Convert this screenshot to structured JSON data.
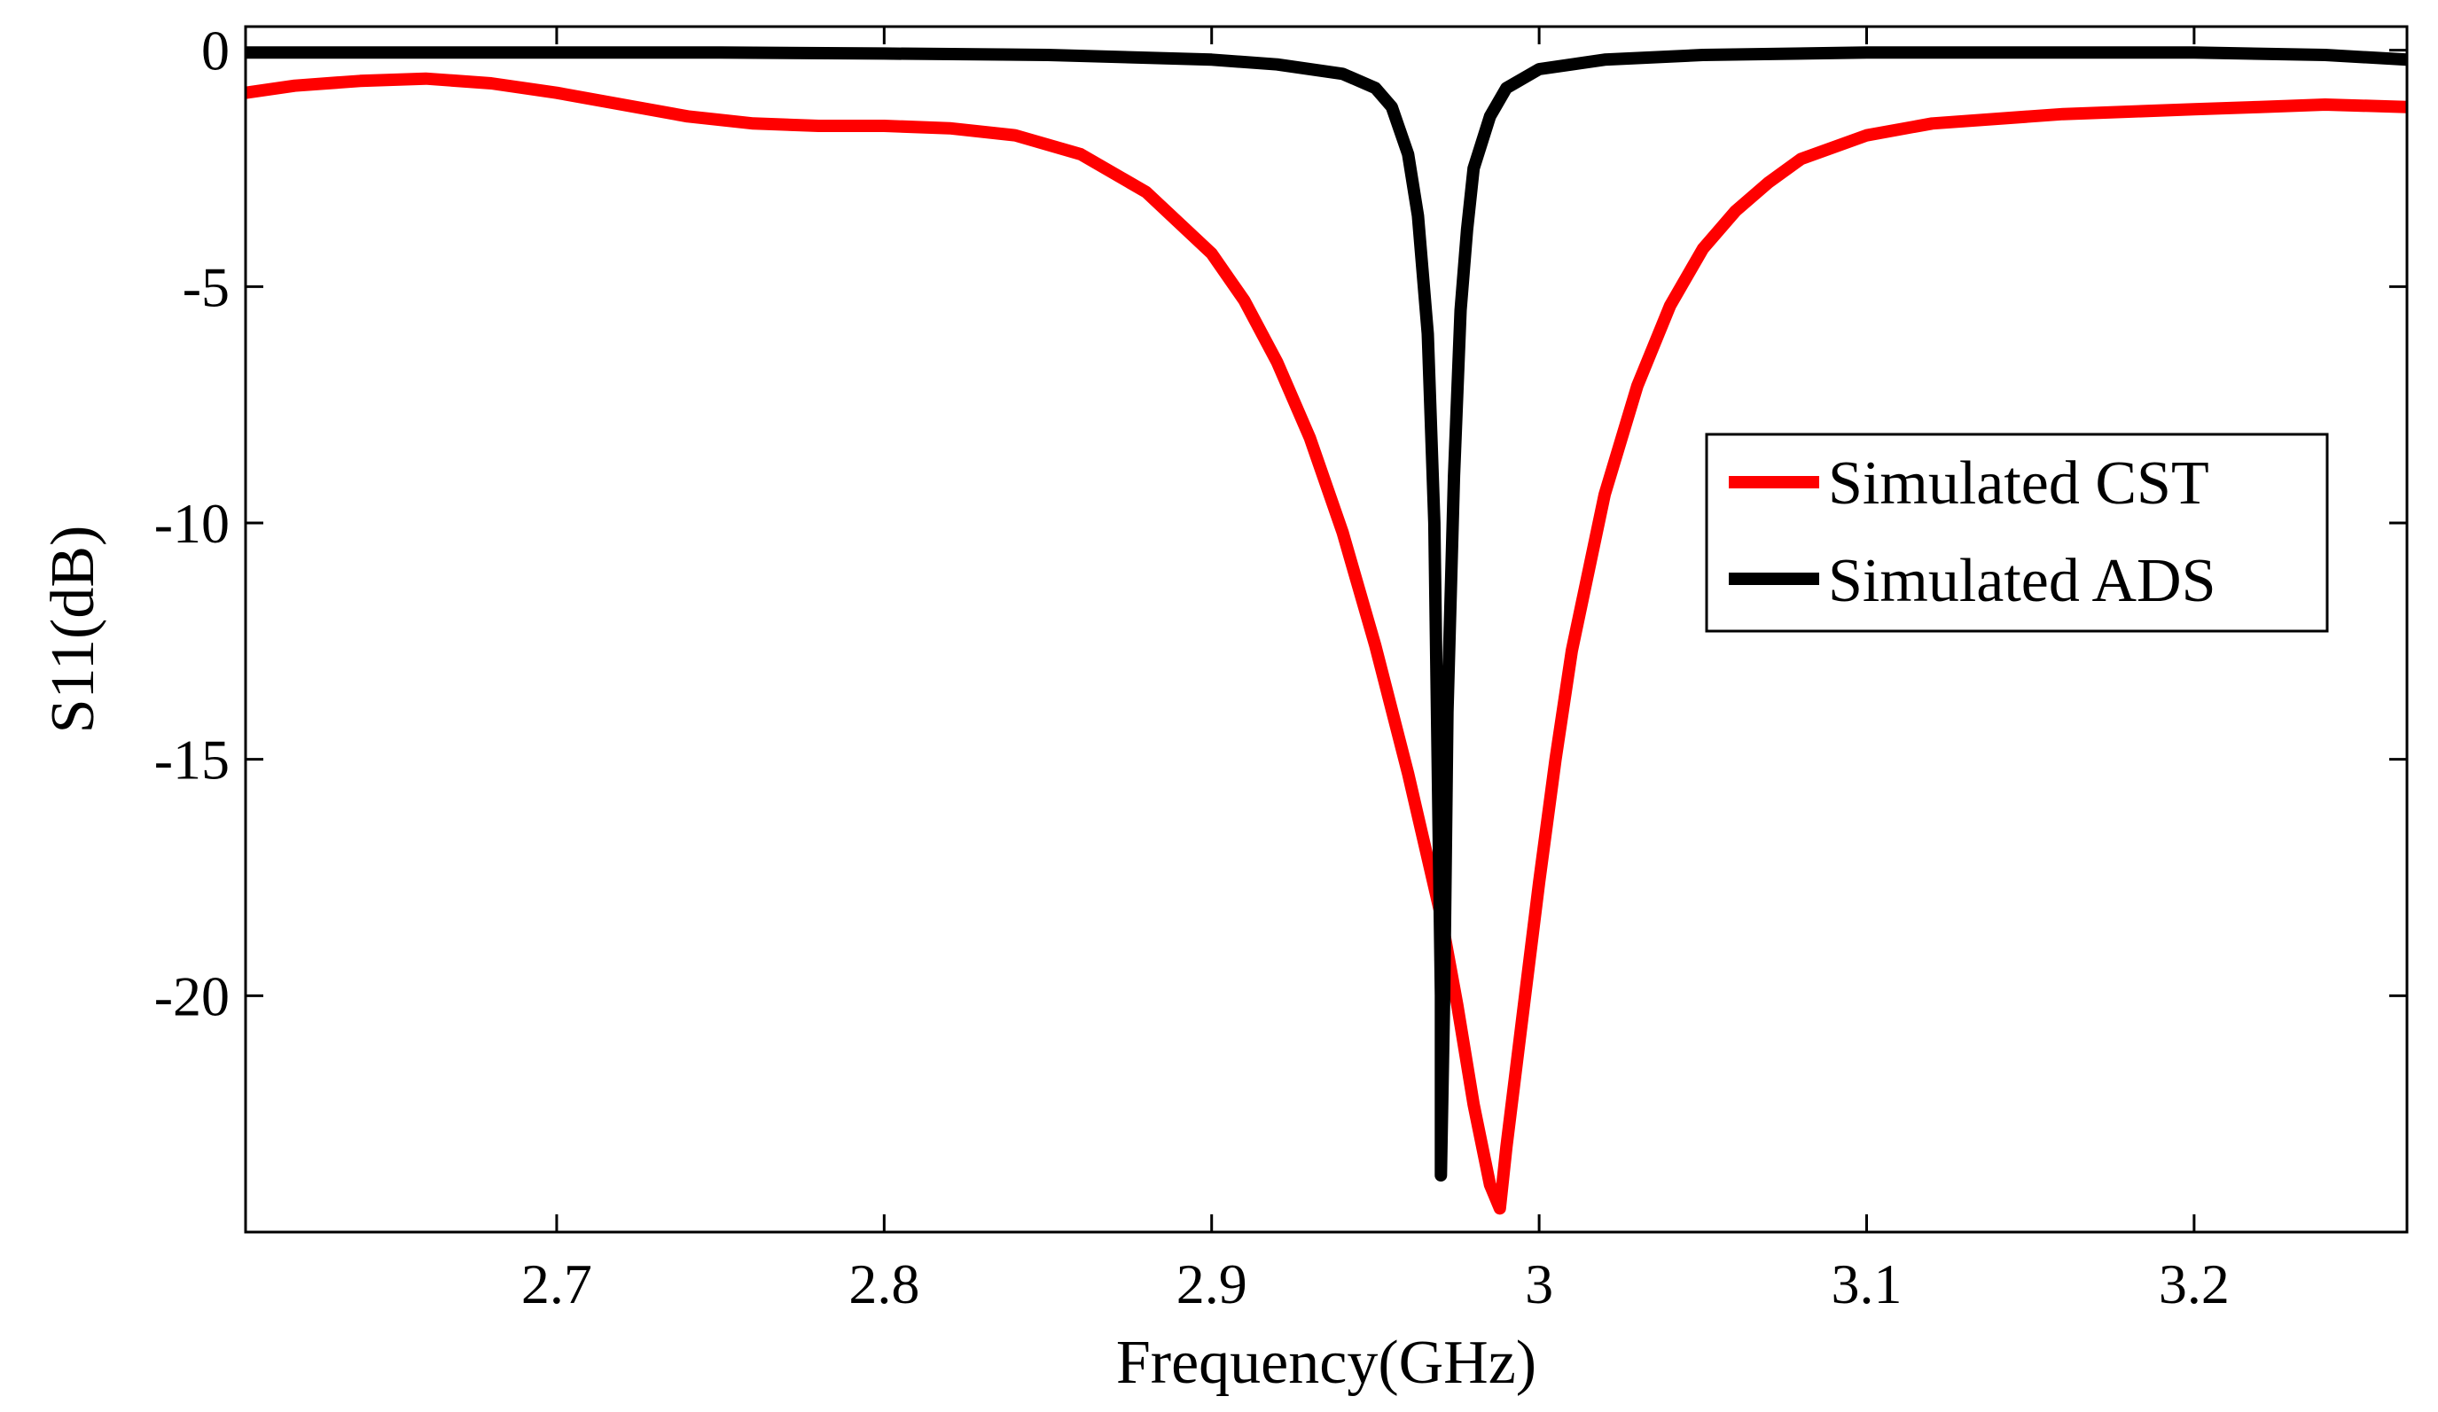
{
  "chart_data": {
    "type": "line",
    "title": "",
    "xlabel": "Frequency(GHz)",
    "ylabel": "S11(dB)",
    "xlim": [
      2.605,
      3.265
    ],
    "ylim": [
      -25,
      0.5
    ],
    "xticks": [
      2.7,
      2.8,
      2.9,
      3.0,
      3.1,
      3.2
    ],
    "xtick_labels": [
      "2.7",
      "2.8",
      "2.9",
      "3",
      "3.1",
      "3.2"
    ],
    "yticks": [
      0,
      -5,
      -10,
      -15,
      -20
    ],
    "ytick_labels": [
      "0",
      "-5",
      "-10",
      "-15",
      "-20"
    ],
    "grid": false,
    "legend_position": "center-right",
    "series": [
      {
        "name": "Simulated CST",
        "color": "#ff0000",
        "x": [
          2.605,
          2.62,
          2.64,
          2.66,
          2.68,
          2.7,
          2.72,
          2.74,
          2.76,
          2.78,
          2.8,
          2.82,
          2.84,
          2.86,
          2.88,
          2.9,
          2.91,
          2.92,
          2.93,
          2.94,
          2.95,
          2.96,
          2.965,
          2.97,
          2.975,
          2.98,
          2.985,
          2.988,
          2.99,
          2.995,
          3.0,
          3.005,
          3.01,
          3.02,
          3.03,
          3.04,
          3.05,
          3.06,
          3.07,
          3.08,
          3.1,
          3.12,
          3.14,
          3.16,
          3.18,
          3.2,
          3.22,
          3.24,
          3.265
        ],
        "values": [
          -0.9,
          -0.75,
          -0.65,
          -0.6,
          -0.7,
          -0.9,
          -1.15,
          -1.4,
          -1.55,
          -1.6,
          -1.6,
          -1.65,
          -1.8,
          -2.2,
          -3.0,
          -4.3,
          -5.3,
          -6.6,
          -8.2,
          -10.2,
          -12.6,
          -15.3,
          -16.8,
          -18.3,
          -20.2,
          -22.3,
          -24.0,
          -24.5,
          -23.2,
          -20.4,
          -17.6,
          -15.0,
          -12.7,
          -9.4,
          -7.1,
          -5.4,
          -4.2,
          -3.4,
          -2.8,
          -2.3,
          -1.8,
          -1.55,
          -1.45,
          -1.35,
          -1.3,
          -1.25,
          -1.2,
          -1.15,
          -1.2
        ]
      },
      {
        "name": "Simulated ADS",
        "color": "#000000",
        "x": [
          2.605,
          2.65,
          2.7,
          2.75,
          2.8,
          2.85,
          2.9,
          2.92,
          2.94,
          2.95,
          2.955,
          2.96,
          2.963,
          2.966,
          2.968,
          2.969,
          2.97,
          2.97,
          2.971,
          2.972,
          2.974,
          2.976,
          2.978,
          2.98,
          2.985,
          2.99,
          3.0,
          3.02,
          3.05,
          3.1,
          3.15,
          3.2,
          3.24,
          3.265
        ],
        "values": [
          -0.05,
          -0.05,
          -0.05,
          -0.05,
          -0.07,
          -0.1,
          -0.2,
          -0.3,
          -0.5,
          -0.8,
          -1.2,
          -2.2,
          -3.5,
          -6.0,
          -10.0,
          -15.0,
          -20.0,
          -23.8,
          -20.0,
          -14.0,
          -9.0,
          -5.5,
          -3.8,
          -2.5,
          -1.4,
          -0.8,
          -0.4,
          -0.2,
          -0.1,
          -0.05,
          -0.05,
          -0.05,
          -0.1,
          -0.2
        ]
      }
    ]
  }
}
